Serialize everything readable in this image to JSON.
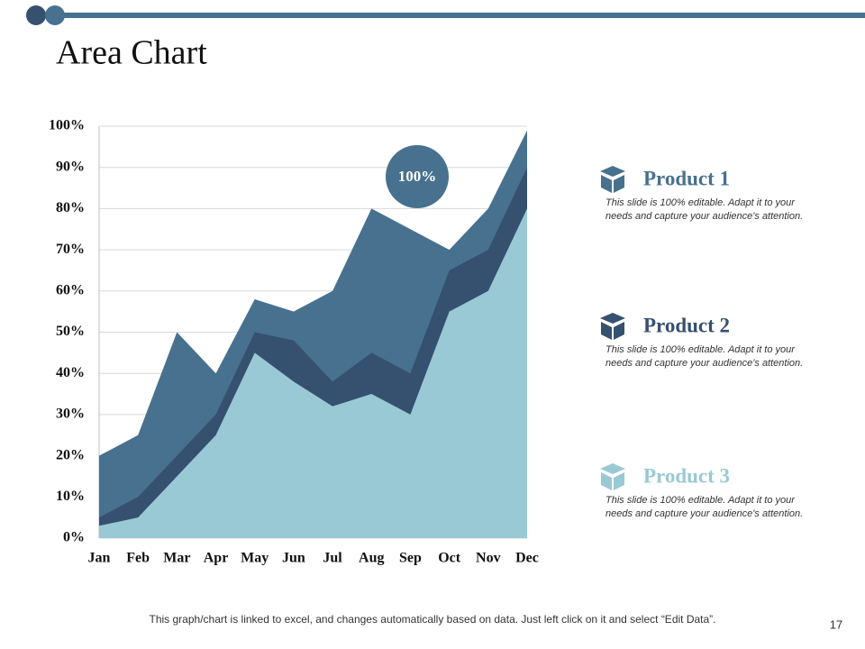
{
  "chart_data": {
    "type": "area",
    "title": "Area Chart",
    "categories": [
      "Jan",
      "Feb",
      "Mar",
      "Apr",
      "May",
      "Jun",
      "Jul",
      "Aug",
      "Sep",
      "Oct",
      "Nov",
      "Dec"
    ],
    "series": [
      {
        "name": "Product 1",
        "color": "#47718f",
        "description": "This slide is 100% editable. Adapt it to your needs and capture your audience's attention.",
        "values": [
          20,
          25,
          50,
          40,
          58,
          55,
          60,
          80,
          75,
          70,
          80,
          99
        ]
      },
      {
        "name": "Product 2",
        "color": "#36506f",
        "description": "This slide is 100% editable. Adapt it to your needs and capture your audience's attention.",
        "values": [
          5,
          10,
          20,
          30,
          50,
          48,
          38,
          45,
          40,
          65,
          70,
          90
        ]
      },
      {
        "name": "Product 3",
        "color": "#99c9d4",
        "description": "This slide is 100% editable. Adapt it to your needs and capture your audience's attention.",
        "values": [
          3,
          5,
          15,
          25,
          45,
          38,
          32,
          35,
          30,
          55,
          60,
          80
        ]
      }
    ],
    "ylim": [
      0,
      100
    ],
    "yticks": [
      {
        "value": 0,
        "label": "0%"
      },
      {
        "value": 10,
        "label": "10%"
      },
      {
        "value": 20,
        "label": "20%"
      },
      {
        "value": 30,
        "label": "30%"
      },
      {
        "value": 40,
        "label": "40%"
      },
      {
        "value": 50,
        "label": "50%"
      },
      {
        "value": 60,
        "label": "60%"
      },
      {
        "value": 70,
        "label": "70%"
      },
      {
        "value": 80,
        "label": "80%"
      },
      {
        "value": 90,
        "label": "90%"
      },
      {
        "value": 100,
        "label": "100%"
      }
    ],
    "grid": true,
    "annotation": "100%"
  },
  "footnote": "This graph/chart is linked to excel, and changes automatically based on data. Just left click on it and select “Edit Data”.",
  "page_number": "17"
}
